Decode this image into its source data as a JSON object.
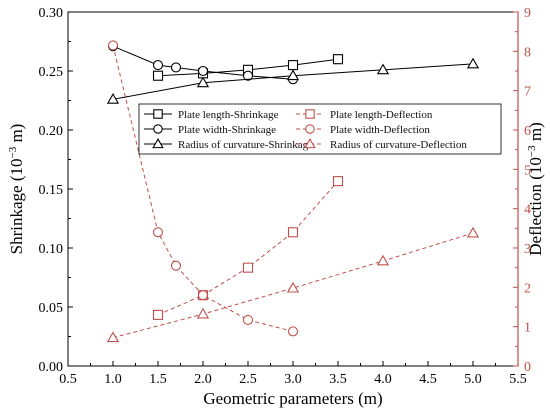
{
  "chart_data": {
    "type": "line",
    "x_axis": {
      "label": "Geometric parameters (m)",
      "range": [
        0.5,
        5.5
      ],
      "ticks": [
        0.5,
        1.0,
        1.5,
        2.0,
        2.5,
        3.0,
        3.5,
        4.0,
        4.5,
        5.0,
        5.5
      ],
      "tick_labels": [
        "0.5",
        "1.0",
        "1.5",
        "2.0",
        "2.5",
        "3.0",
        "3.5",
        "4.0",
        "4.5",
        "5.0",
        "5.5"
      ]
    },
    "y_left": {
      "label_prefix": "Shrinkage (10",
      "label_exp": "−3",
      "label_suffix": " m)",
      "range": [
        0.0,
        0.3
      ],
      "ticks": [
        0.0,
        0.05,
        0.1,
        0.15,
        0.2,
        0.25,
        0.3
      ],
      "tick_labels": [
        "0.00",
        "0.05",
        "0.10",
        "0.15",
        "0.20",
        "0.25",
        "0.30"
      ],
      "color": "#000000"
    },
    "y_right": {
      "label_prefix": "Deflection (10",
      "label_exp": "−3",
      "label_suffix": " m)",
      "range": [
        0,
        9
      ],
      "ticks": [
        0,
        1,
        2,
        3,
        4,
        5,
        6,
        7,
        8,
        9
      ],
      "tick_labels": [
        "0",
        "1",
        "2",
        "3",
        "4",
        "5",
        "6",
        "7",
        "8",
        "9"
      ],
      "color": "#c0504d"
    },
    "series": [
      {
        "name": "Plate length-Shrinkage",
        "axis": "left",
        "marker": "square",
        "dash": "solid",
        "color": "#000000",
        "x": [
          1.5,
          2.0,
          2.5,
          3.0,
          3.5
        ],
        "y": [
          0.246,
          0.248,
          0.251,
          0.255,
          0.26
        ]
      },
      {
        "name": "Plate width-Shrinkage",
        "axis": "left",
        "marker": "circle",
        "dash": "solid",
        "color": "#000000",
        "x": [
          1.0,
          1.5,
          1.7,
          2.0,
          2.5,
          3.0
        ],
        "y": [
          0.271,
          0.255,
          0.253,
          0.25,
          0.246,
          0.243
        ]
      },
      {
        "name": "Radius of curvature-Shrinkage",
        "axis": "left",
        "marker": "triangle",
        "dash": "solid",
        "color": "#000000",
        "x": [
          1.0,
          2.0,
          3.0,
          4.0,
          5.0
        ],
        "y": [
          0.226,
          0.24,
          0.246,
          0.251,
          0.256
        ]
      },
      {
        "name": "Plate length-Deflection",
        "axis": "right",
        "marker": "square",
        "dash": "dashed",
        "color": "#c0504d",
        "x": [
          1.5,
          2.0,
          2.5,
          3.0,
          3.5
        ],
        "y": [
          1.3,
          1.8,
          2.5,
          3.4,
          4.7
        ]
      },
      {
        "name": "Plate width-Deflection",
        "axis": "right",
        "marker": "circle",
        "dash": "dashed",
        "color": "#c0504d",
        "x": [
          1.0,
          1.5,
          1.7,
          2.0,
          2.5,
          3.0
        ],
        "y": [
          8.15,
          3.4,
          2.55,
          1.8,
          1.17,
          0.88
        ]
      },
      {
        "name": "Radius of curvature-Deflection",
        "axis": "right",
        "marker": "triangle",
        "dash": "dashed",
        "color": "#c0504d",
        "x": [
          1.0,
          2.0,
          3.0,
          4.0,
          5.0
        ],
        "y": [
          0.72,
          1.32,
          1.98,
          2.67,
          3.38
        ]
      }
    ],
    "legend": {
      "placement": "upper-middle",
      "columns": 2
    },
    "grid": false
  }
}
